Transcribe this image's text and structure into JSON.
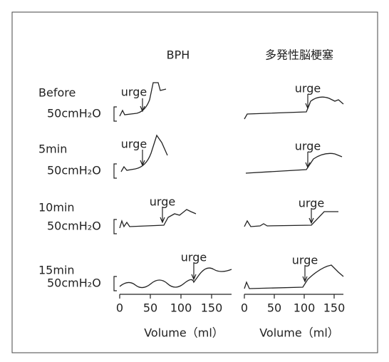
{
  "columns": [
    "BPH",
    "多発性脳梗塞"
  ],
  "rows": [
    {
      "label": "Before",
      "scale": "50cmH₂O",
      "annotations": [
        "urge",
        "urge"
      ]
    },
    {
      "label": "5min",
      "scale": "50cmH₂O",
      "annotations": [
        "urge",
        "urge"
      ]
    },
    {
      "label": "10min",
      "scale": "50cmH₂O",
      "annotations": [
        "urge",
        "urge"
      ]
    },
    {
      "label": "15min",
      "scale": "50cmH₂O",
      "annotations": [
        "urge",
        "urge"
      ]
    }
  ],
  "x_axes": [
    {
      "ticks": [
        0,
        50,
        100,
        150
      ],
      "label": "Volume（ml）"
    },
    {
      "ticks": [
        0,
        50,
        100,
        150
      ],
      "label": "Volume（ml）"
    }
  ]
}
